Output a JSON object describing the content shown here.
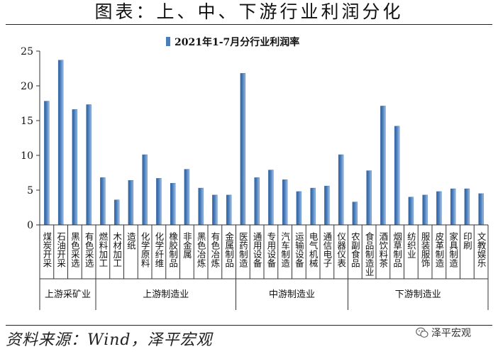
{
  "page_title": "图表：上、中、下游行业利润分化",
  "source": "资料来源：Wind，泽平宏观",
  "watermark": "泽平宏观",
  "chart_data": {
    "type": "bar",
    "legend": "2021年1-7月分行业利润率",
    "legend_position": "top-center",
    "ylim": [
      0,
      25
    ],
    "yticks": [
      0,
      5,
      10,
      15,
      20,
      25
    ],
    "bar_color": "#4a7ebb",
    "categories": [
      "煤炭开采",
      "石油开采",
      "黑色采选",
      "有色采选",
      "燃料加工",
      "木材加工",
      "造纸",
      "化学原料",
      "化学纤维",
      "橡胶制品",
      "非金属",
      "黑色冶炼",
      "有色冶炼",
      "金属制品",
      "医药制造",
      "通用设备",
      "专用设备",
      "汽车制造",
      "运输设备",
      "电气机械",
      "通信电子",
      "仪器仪表",
      "农副食品",
      "食品制造业",
      "酒饮料茶",
      "烟草制品",
      "纺织业",
      "服装服饰",
      "皮革制造",
      "家具制造",
      "印刷",
      "文教娱乐"
    ],
    "values": [
      17.8,
      23.7,
      16.6,
      17.3,
      6.8,
      3.6,
      6.4,
      10.1,
      6.7,
      6.0,
      8.0,
      5.3,
      4.3,
      4.3,
      21.8,
      6.8,
      7.9,
      6.5,
      4.8,
      5.3,
      5.6,
      10.1,
      3.3,
      7.8,
      17.1,
      14.2,
      4.0,
      4.3,
      4.8,
      5.2,
      5.2,
      4.5
    ],
    "groups": [
      {
        "label": "上游采矿业",
        "start": 0,
        "end": 3
      },
      {
        "label": "上游制造业",
        "start": 4,
        "end": 13
      },
      {
        "label": "中游制造业",
        "start": 14,
        "end": 21
      },
      {
        "label": "下游制造业",
        "start": 22,
        "end": 31
      }
    ]
  }
}
